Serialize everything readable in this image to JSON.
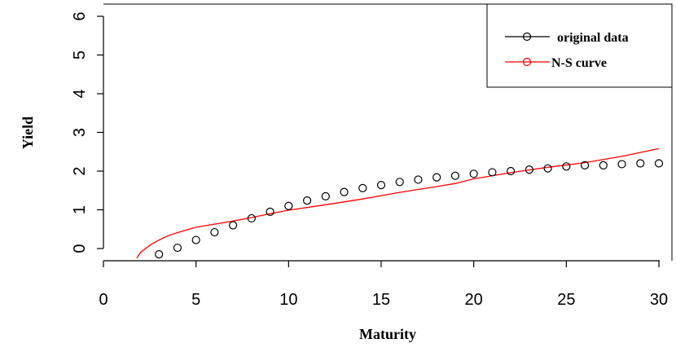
{
  "chart_data": {
    "type": "line",
    "xlabel": "Maturity",
    "ylabel": "Yield",
    "xlim": [
      0,
      30
    ],
    "ylim": [
      -0.3,
      6.3
    ],
    "xticks": [
      "0",
      "5",
      "10",
      "15",
      "20",
      "25",
      "30"
    ],
    "yticks": [
      "0",
      "1",
      "2",
      "3",
      "4",
      "5",
      "6"
    ],
    "grid": false,
    "legend_position": "top-right",
    "legend": [
      {
        "label": "original data",
        "color": "#000000",
        "marker": "circle"
      },
      {
        "label": "N-S curve",
        "color": "#ff0000",
        "marker": "circle"
      }
    ],
    "series": [
      {
        "name": "original data",
        "style": "points",
        "color": "#000000",
        "x": [
          3,
          4,
          5,
          6,
          7,
          8,
          9,
          10,
          11,
          12,
          13,
          14,
          15,
          16,
          17,
          18,
          19,
          20,
          21,
          22,
          23,
          24,
          25,
          26,
          27,
          28,
          29,
          30
        ],
        "y": [
          -0.15,
          0.02,
          0.22,
          0.42,
          0.6,
          0.78,
          0.95,
          1.1,
          1.24,
          1.35,
          1.46,
          1.56,
          1.64,
          1.72,
          1.78,
          1.84,
          1.88,
          1.93,
          1.97,
          2.0,
          2.04,
          2.07,
          2.12,
          2.15,
          2.15,
          2.18,
          2.2,
          2.2
        ]
      },
      {
        "name": "N-S curve",
        "style": "line",
        "color": "#ff0000",
        "x": [
          1.8,
          2,
          2.5,
          3,
          3.5,
          4,
          5,
          6,
          7,
          8,
          9,
          10,
          12,
          14,
          16,
          18,
          19,
          20,
          22,
          24,
          26,
          28,
          30
        ],
        "y": [
          -0.25,
          -0.1,
          0.08,
          0.22,
          0.33,
          0.41,
          0.55,
          0.63,
          0.71,
          0.8,
          0.9,
          0.99,
          1.13,
          1.28,
          1.45,
          1.6,
          1.68,
          1.8,
          1.96,
          2.1,
          2.22,
          2.38,
          2.58
        ]
      }
    ]
  }
}
